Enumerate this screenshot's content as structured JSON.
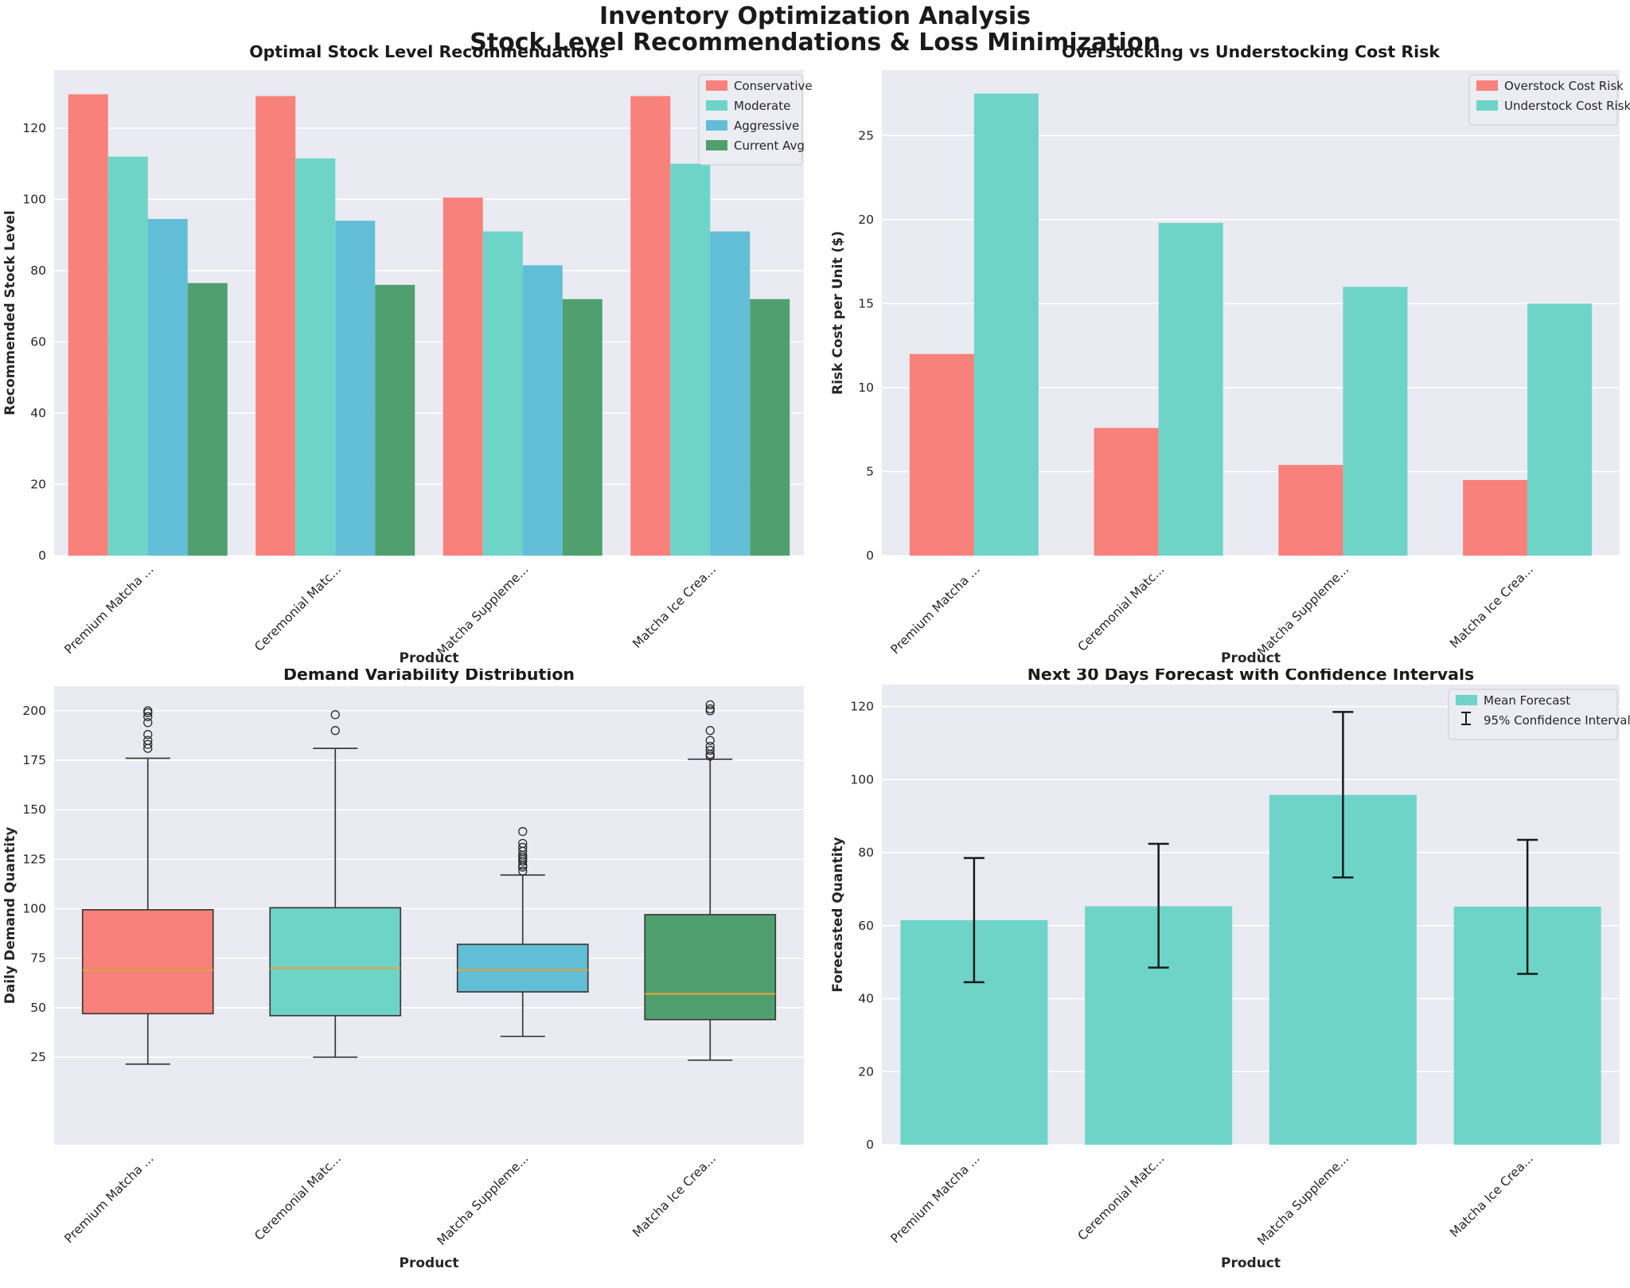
{
  "suptitle": {
    "line1": "Inventory Optimization Analysis",
    "line2": "Stock Level Recommendations & Loss Minimization"
  },
  "colors": {
    "figure_bg": "#FFFFFF",
    "plot_bg": "#EAEAF2",
    "grid": "#FFFFFF",
    "text": "#262626",
    "title": "#1A1A1A",
    "conservative": "#F8817B",
    "moderate": "#6ED4C8",
    "aggressive": "#61BED6",
    "current_avg": "#4FA06E",
    "forecast": "#6ED4C8",
    "median_line": "#DEA13C",
    "box_edge": "#3B3B3B",
    "error_bar": "#1A1A1A",
    "legend_bg": "#ECECF3",
    "legend_border": "#CCCCCC"
  },
  "chart_data": [
    {
      "type": "bar",
      "title": "Optimal Stock Level Recommendations",
      "xlabel": "Product",
      "ylabel": "Recommended Stock Level",
      "categories": [
        "Premium Matcha ...",
        "Ceremonial Matc...",
        "Matcha Suppleme...",
        "Matcha Ice Crea..."
      ],
      "series": [
        {
          "name": "Conservative",
          "color": "conservative",
          "values": [
            129.5,
            129.0,
            100.5,
            129.0
          ]
        },
        {
          "name": "Moderate",
          "color": "moderate",
          "values": [
            112.0,
            111.5,
            91.0,
            110.0
          ]
        },
        {
          "name": "Aggressive",
          "color": "aggressive",
          "values": [
            94.5,
            94.0,
            81.5,
            91.0
          ]
        },
        {
          "name": "Current Avg",
          "color": "current_avg",
          "values": [
            76.5,
            76.0,
            72.0,
            72.0
          ]
        }
      ],
      "yticks": [
        0,
        20,
        40,
        60,
        80,
        100,
        120
      ],
      "ylim": [
        0,
        136.3
      ],
      "grid": true,
      "legend_position": "upper right"
    },
    {
      "type": "bar",
      "title": "Overstocking vs Understocking Cost Risk",
      "xlabel": "Product",
      "ylabel": "Risk Cost per Unit ($)",
      "categories": [
        "Premium Matcha ...",
        "Ceremonial Matc...",
        "Matcha Suppleme...",
        "Matcha Ice Crea..."
      ],
      "series": [
        {
          "name": "Overstock Cost Risk",
          "color": "conservative",
          "values": [
            12.0,
            7.6,
            5.4,
            4.5
          ]
        },
        {
          "name": "Understock Cost Risk",
          "color": "moderate",
          "values": [
            27.5,
            19.8,
            16.0,
            15.0
          ]
        }
      ],
      "yticks": [
        0,
        5,
        10,
        15,
        20,
        25
      ],
      "ylim": [
        0,
        28.9
      ],
      "grid": true,
      "legend_position": "upper right"
    },
    {
      "type": "box",
      "title": "Demand Variability Distribution",
      "xlabel": "Product",
      "ylabel": "Daily Demand Quantity",
      "categories": [
        "Premium Matcha ...",
        "Ceremonial Matc...",
        "Matcha Suppleme...",
        "Matcha Ice Crea..."
      ],
      "boxes": [
        {
          "label": "Premium Matcha ...",
          "color": "conservative",
          "whisker_low": 21.5,
          "q1": 47.0,
          "median": 69.0,
          "q3": 99.5,
          "whisker_high": 176.0,
          "outliers": [
            181,
            183,
            185,
            188,
            194,
            197,
            199,
            200
          ]
        },
        {
          "label": "Ceremonial Matc...",
          "color": "moderate",
          "whisker_low": 25.0,
          "q1": 46.0,
          "median": 70.0,
          "q3": 100.5,
          "whisker_high": 181.0,
          "outliers": [
            190,
            198
          ]
        },
        {
          "label": "Matcha Suppleme...",
          "color": "aggressive",
          "whisker_low": 35.5,
          "q1": 58.0,
          "median": 69.0,
          "q3": 82.0,
          "whisker_high": 117.0,
          "outliers": [
            119,
            121,
            122,
            124,
            125,
            126,
            127,
            129,
            131,
            133,
            139
          ]
        },
        {
          "label": "Matcha Ice Crea...",
          "color": "current_avg",
          "whisker_low": 23.5,
          "q1": 44.0,
          "median": 57.0,
          "q3": 97.0,
          "whisker_high": 175.5,
          "outliers": [
            177,
            178,
            180,
            182,
            185,
            190,
            200,
            201,
            203
          ]
        }
      ],
      "yticks": [
        25,
        50,
        75,
        100,
        125,
        150,
        175,
        200
      ],
      "ylim": [
        -19.2,
        212.4
      ],
      "grid": true
    },
    {
      "type": "bar_error",
      "title": "Next 30 Days Forecast with Confidence Intervals",
      "xlabel": "Product",
      "ylabel": "Forecasted Quantity",
      "categories": [
        "Premium Matcha ...",
        "Ceremonial Matc...",
        "Matcha Suppleme...",
        "Matcha Ice Crea..."
      ],
      "series": [
        {
          "name": "Mean Forecast",
          "color": "forecast",
          "values": [
            61.5,
            65.3,
            95.8,
            65.2
          ]
        }
      ],
      "error_bars": {
        "name": "95% Confidence Interval",
        "low": [
          44.5,
          48.5,
          73.2,
          46.8
        ],
        "high": [
          78.5,
          82.4,
          118.5,
          83.5
        ]
      },
      "yticks": [
        0,
        20,
        40,
        60,
        80,
        100,
        120
      ],
      "ylim": [
        0,
        126
      ],
      "grid": true,
      "legend_position": "upper right"
    }
  ]
}
